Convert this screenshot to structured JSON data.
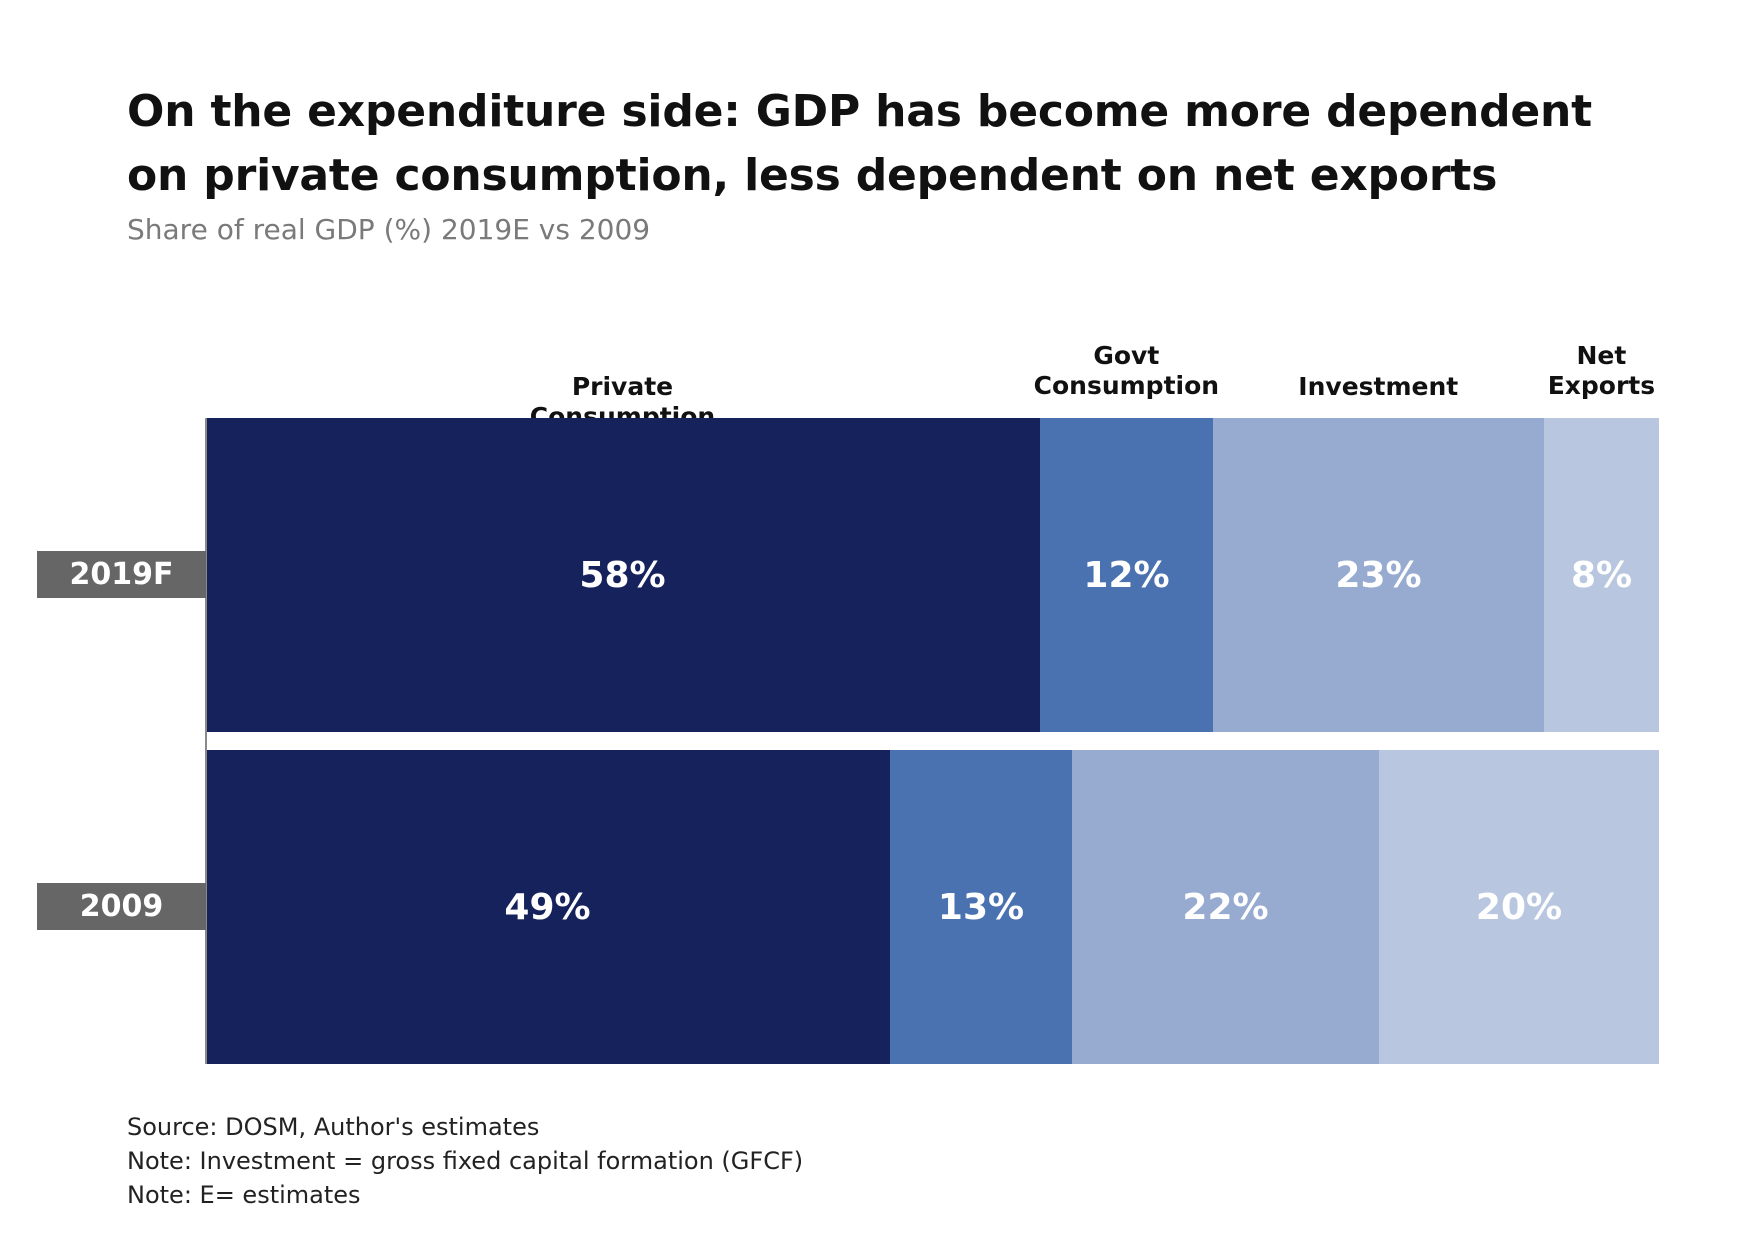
{
  "title": "On the expenditure side: GDP has become more dependent on private consumption, less dependent on net exports",
  "subtitle": "Share of real GDP (%) 2019E vs 2009",
  "chart_data": {
    "type": "bar",
    "orientation": "horizontal",
    "stacked": true,
    "normalized_to": 100,
    "title": "On the expenditure side: GDP has become more dependent on private consumption, less dependent on net exports",
    "subtitle": "Share of real GDP (%) 2019E vs 2009",
    "categories": [
      "2019F",
      "2009"
    ],
    "series": [
      {
        "name": "Private Consumption",
        "display_name": [
          "Private Consumption"
        ],
        "color": "#16225c",
        "values": [
          58,
          49
        ],
        "labels": [
          "58%",
          "49%"
        ]
      },
      {
        "name": "Govt Consumption",
        "display_name": [
          "Govt",
          "Consumption"
        ],
        "color": "#4b72b0",
        "values": [
          12,
          13
        ],
        "labels": [
          "12%",
          "13%"
        ]
      },
      {
        "name": "Investment",
        "display_name": [
          "Investment"
        ],
        "color": "#97abd1",
        "values": [
          23,
          22
        ],
        "labels": [
          "23%",
          "22%"
        ]
      },
      {
        "name": "Net Exports",
        "display_name": [
          "Net",
          "Exports"
        ],
        "color": "#b8c7df",
        "values": [
          8,
          20
        ],
        "labels": [
          "8%",
          "20%"
        ]
      }
    ],
    "legend": "top",
    "grid": false
  },
  "footnotes": [
    "Source: DOSM, Author's estimates",
    "Note: Investment = gross fixed capital formation (GFCF)",
    "Note: E= estimates"
  ]
}
